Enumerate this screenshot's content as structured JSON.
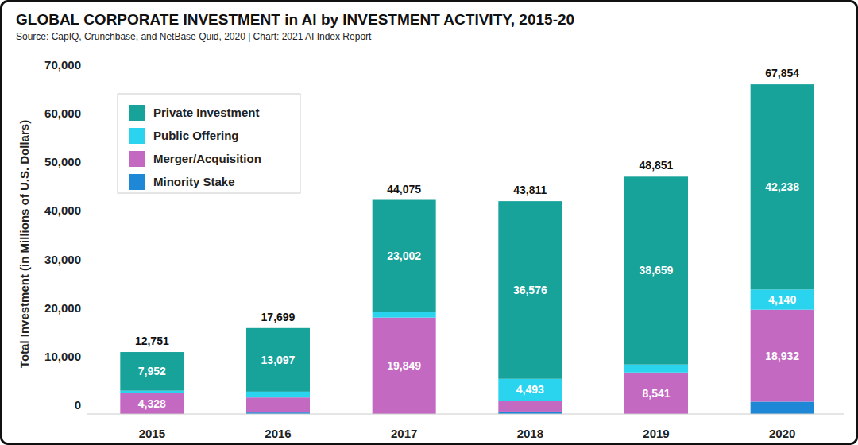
{
  "chart_data": {
    "type": "bar",
    "title": "GLOBAL CORPORATE INVESTMENT in AI by INVESTMENT ACTIVITY, 2015-20",
    "subtitle": "Source: CapIQ, Crunchbase, and NetBase Quid, 2020 | Chart: 2021 AI Index Report",
    "y_label": "Total Investment (in Millions of U.S. Dollars)",
    "categories": [
      "2015",
      "2016",
      "2017",
      "2018",
      "2019",
      "2020"
    ],
    "stacked": true,
    "data_labels": true,
    "grid": false,
    "legend": "top-left",
    "ylim": [
      0,
      70000
    ],
    "yticks": [
      0,
      {
        "value": 10000,
        "label": "10,000"
      },
      {
        "value": 20000,
        "label": "20,000"
      },
      {
        "value": 30000,
        "label": "30,000"
      },
      {
        "value": 40000,
        "label": "40,000"
      },
      {
        "value": 50000,
        "label": "50,000"
      },
      {
        "value": 60000,
        "label": "60,000"
      },
      {
        "value": 70000,
        "label": "70,000"
      }
    ],
    "series": [
      {
        "name": "Private Investment",
        "color": "#17a29a",
        "values": [
          7952,
          13097,
          23002,
          36576,
          38659,
          42238
        ],
        "value_labels": [
          "7,952",
          "13,097",
          "23,002",
          "36,576",
          "38,659",
          "42,238"
        ]
      },
      {
        "name": "Public Offering",
        "color": "#2ad4ee",
        "values": [
          471,
          1200,
          1224,
          4493,
          1651,
          4140
        ],
        "value_labels": [
          null,
          null,
          null,
          "4,493",
          null,
          "4,140"
        ]
      },
      {
        "name": "Merger/Acquisition",
        "color": "#c369c2",
        "values": [
          4328,
          3100,
          19849,
          2242,
          8541,
          18932
        ],
        "value_labels": [
          "4,328",
          null,
          "19,849",
          null,
          "8,541",
          "18,932"
        ]
      },
      {
        "name": "Minority Stake",
        "color": "#1f88d6",
        "values": [
          0,
          302,
          0,
          500,
          0,
          2544
        ],
        "value_labels": [
          null,
          null,
          null,
          null,
          null,
          null
        ]
      }
    ],
    "totals": [
      12751,
      17699,
      44075,
      43811,
      48851,
      67854
    ],
    "total_labels": [
      "12,751",
      "17,699",
      "44,075",
      "43,811",
      "48,851",
      "67,854"
    ]
  }
}
